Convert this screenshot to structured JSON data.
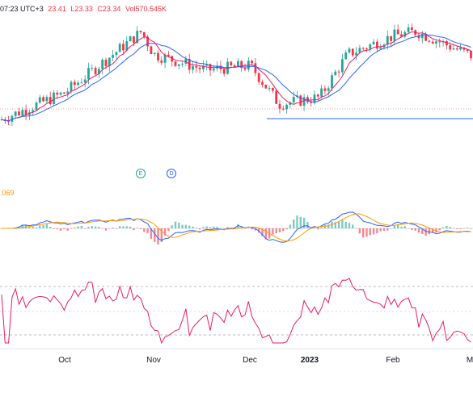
{
  "header": {
    "time_text": "07:23 UTC+3",
    "open_text": "23.41",
    "low_text": "L23.33",
    "close_text": "C23.34",
    "volume_text": "Vol570.545K"
  },
  "macd_label": ".069",
  "events": [
    {
      "glyph": "E",
      "name": "earnings"
    },
    {
      "glyph": "D",
      "name": "dividends"
    }
  ],
  "x_axis": {
    "labels": [
      "Oct",
      "Nov",
      "Dec",
      "2023",
      "Feb",
      "M"
    ]
  },
  "colors": {
    "up": "#26a69a",
    "down": "#f23645",
    "ma_fast": "#e91e63",
    "ma_slow": "#2962ff",
    "macd_line": "#2962ff",
    "signal_line": "#ff9800",
    "rsi_line": "#e91e63",
    "support_line": "#2962ff"
  },
  "chart_data": {
    "type": "candlestick",
    "indicators": [
      "price with moving averages",
      "MACD",
      "RSI"
    ],
    "trend_points": [
      {
        "period": "Sep",
        "close": 20.6
      },
      {
        "period": "Oct",
        "close": 21.8
      },
      {
        "period": "late Oct",
        "close": 24.5
      },
      {
        "period": "Nov",
        "close": 23.5
      },
      {
        "period": "mid Nov",
        "close": 22.8
      },
      {
        "period": "late Nov",
        "close": 23.0
      },
      {
        "period": "Dec",
        "close": 21.3
      },
      {
        "period": "2023",
        "close": 21.6
      },
      {
        "period": "mid Jan",
        "close": 23.5
      },
      {
        "period": "Feb",
        "close": 24.3
      },
      {
        "period": "mid Feb",
        "close": 24.5
      },
      {
        "period": "late Feb",
        "close": 23.4
      }
    ],
    "grid": false,
    "legend": "top-left"
  }
}
